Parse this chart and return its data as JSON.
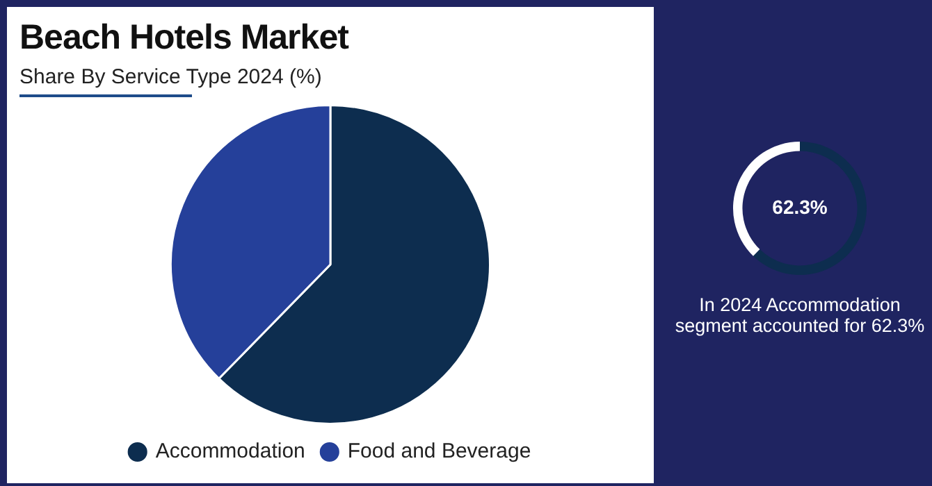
{
  "chart_data": [
    {
      "type": "pie",
      "title": "Beach Hotels Market",
      "subtitle": "Share By Service Type 2024 (%)",
      "categories": [
        "Accommodation",
        "Food and Beverage"
      ],
      "values": [
        62.3,
        37.7
      ],
      "colors": [
        "#0d2d4f",
        "#25409a"
      ],
      "legend": "bottom"
    },
    {
      "type": "donut",
      "categories": [
        null,
        null
      ],
      "values": [
        62.3,
        37.7
      ],
      "colors": [
        "#0d2d4f",
        "#ffffff"
      ],
      "value_labels": [
        "62.3%",
        null
      ],
      "annotations": [
        "In 2024 Accommodation segment accounted for 62.3%"
      ]
    }
  ]
}
